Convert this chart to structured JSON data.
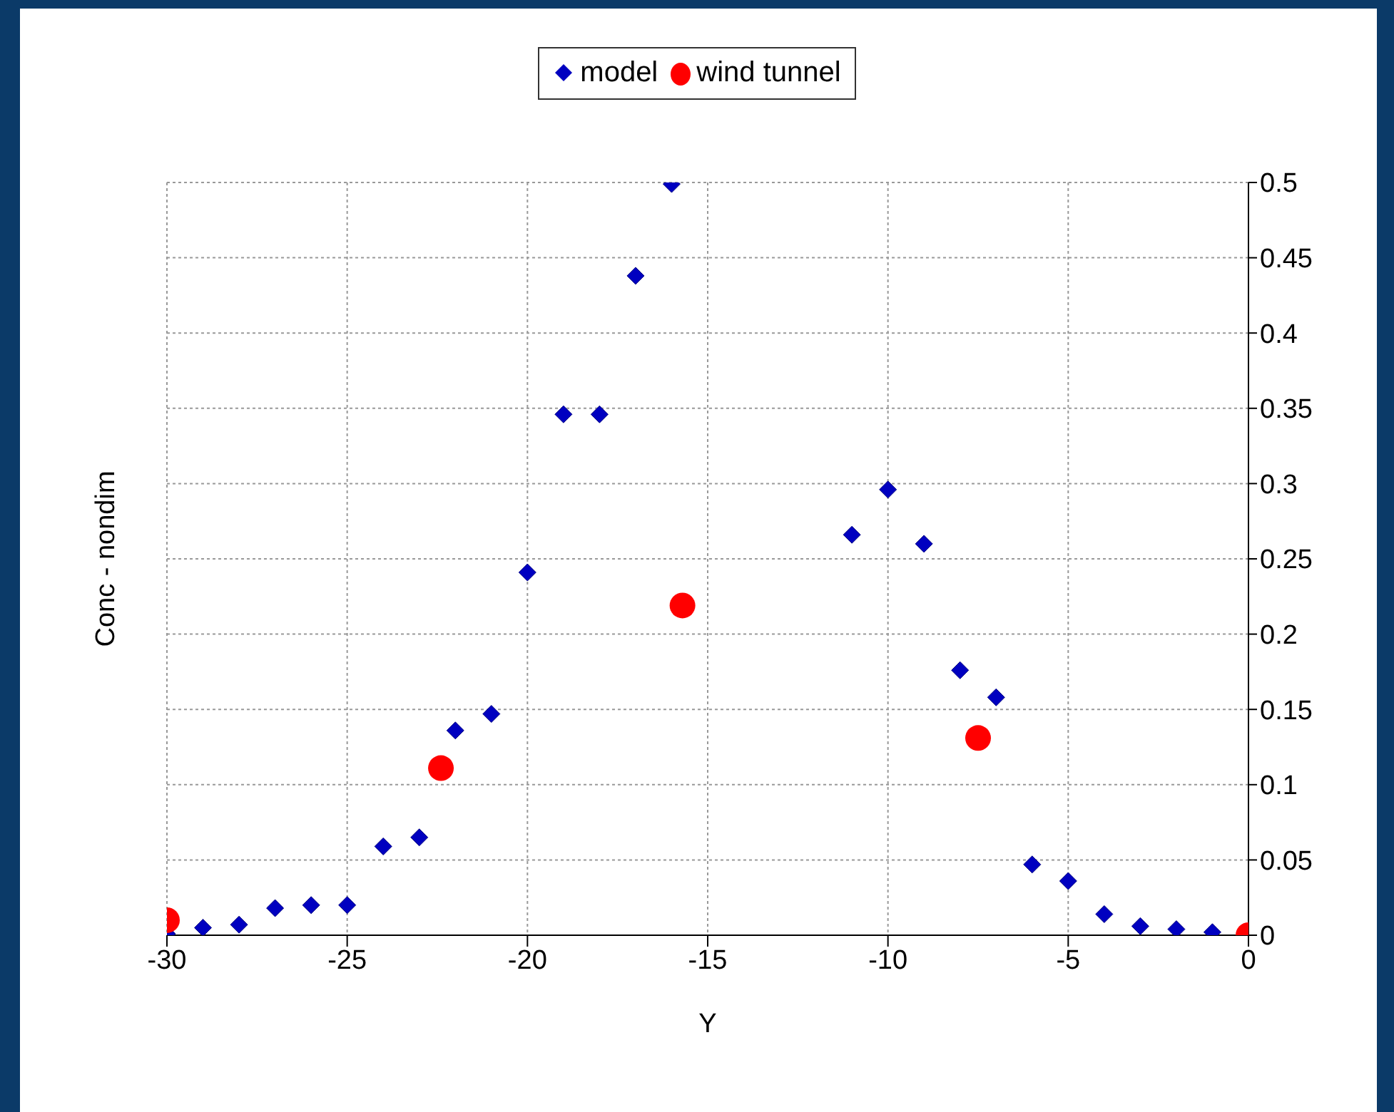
{
  "chart_data": {
    "type": "scatter",
    "xlabel": "Y",
    "ylabel": "Conc - nondim",
    "xlim": [
      -30,
      0
    ],
    "xticks": [
      -30,
      -25,
      -20,
      -15,
      -10,
      -5,
      0
    ],
    "ylim": [
      0,
      0.5
    ],
    "yticks": [
      0,
      0.05,
      0.1,
      0.15,
      0.2,
      0.25,
      0.3,
      0.35,
      0.4,
      0.45,
      0.5
    ],
    "grid": true,
    "legend": "top",
    "series": [
      {
        "name": "model",
        "color": "#0000c0",
        "marker": "diamond",
        "x": [
          -30,
          -29,
          -28,
          -27,
          -26,
          -25,
          -24,
          -23,
          -22,
          -21,
          -20,
          -19,
          -18,
          -17,
          -16,
          -11,
          -10,
          -9,
          -8,
          -7,
          -6,
          -5,
          -4,
          -3,
          -2,
          -1
        ],
        "values": [
          0.001,
          0.005,
          0.007,
          0.018,
          0.02,
          0.02,
          0.059,
          0.065,
          0.136,
          0.147,
          0.241,
          0.346,
          0.346,
          0.438,
          0.499,
          0.266,
          0.296,
          0.26,
          0.176,
          0.158,
          0.047,
          0.036,
          0.014,
          0.006,
          0.004,
          0.002
        ]
      },
      {
        "name": "wind tunnel",
        "color": "#ff0000",
        "marker": "circle",
        "x": [
          -30,
          -22.4,
          -15.7,
          -7.5,
          0
        ],
        "values": [
          0.01,
          0.111,
          0.219,
          0.131,
          0
        ]
      }
    ]
  }
}
